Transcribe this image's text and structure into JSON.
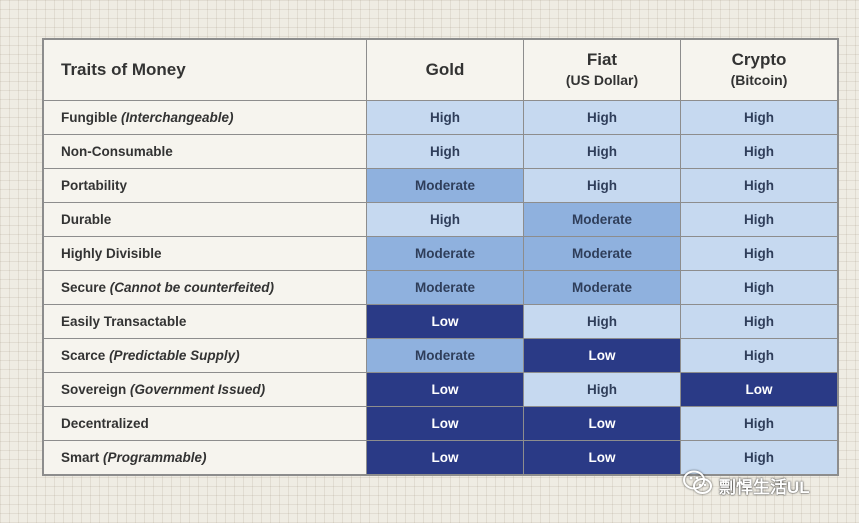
{
  "chart_data": {
    "type": "table",
    "columns": [
      {
        "title": "Traits of Money",
        "subtitle": ""
      },
      {
        "title": "Gold",
        "subtitle": ""
      },
      {
        "title": "Fiat",
        "subtitle": "(US Dollar)"
      },
      {
        "title": "Crypto",
        "subtitle": "(Bitcoin)"
      }
    ],
    "rows": [
      {
        "trait": "Fungible",
        "note": "(Interchangeable)",
        "values": [
          "High",
          "High",
          "High"
        ]
      },
      {
        "trait": "Non-Consumable",
        "note": "",
        "values": [
          "High",
          "High",
          "High"
        ]
      },
      {
        "trait": "Portability",
        "note": "",
        "values": [
          "Moderate",
          "High",
          "High"
        ]
      },
      {
        "trait": "Durable",
        "note": "",
        "values": [
          "High",
          "Moderate",
          "High"
        ]
      },
      {
        "trait": "Highly Divisible",
        "note": "",
        "values": [
          "Moderate",
          "Moderate",
          "High"
        ]
      },
      {
        "trait": "Secure",
        "note": "(Cannot be counterfeited)",
        "values": [
          "Moderate",
          "Moderate",
          "High"
        ]
      },
      {
        "trait": "Easily Transactable",
        "note": "",
        "values": [
          "Low",
          "High",
          "High"
        ]
      },
      {
        "trait": "Scarce",
        "note": "(Predictable Supply)",
        "values": [
          "Moderate",
          "Low",
          "High"
        ]
      },
      {
        "trait": "Sovereign",
        "note": "(Government Issued)",
        "values": [
          "Low",
          "High",
          "Low"
        ]
      },
      {
        "trait": "Decentralized",
        "note": "",
        "values": [
          "Low",
          "Low",
          "High"
        ]
      },
      {
        "trait": "Smart",
        "note": "(Programmable)",
        "values": [
          "Low",
          "Low",
          "High"
        ]
      }
    ],
    "level_colors": {
      "High": "#c6d9f0",
      "Moderate": "#8fb1de",
      "Low": "#2a3a86"
    }
  },
  "watermark": {
    "text": "剽悍生活UL",
    "icon": "wechat-icon"
  }
}
